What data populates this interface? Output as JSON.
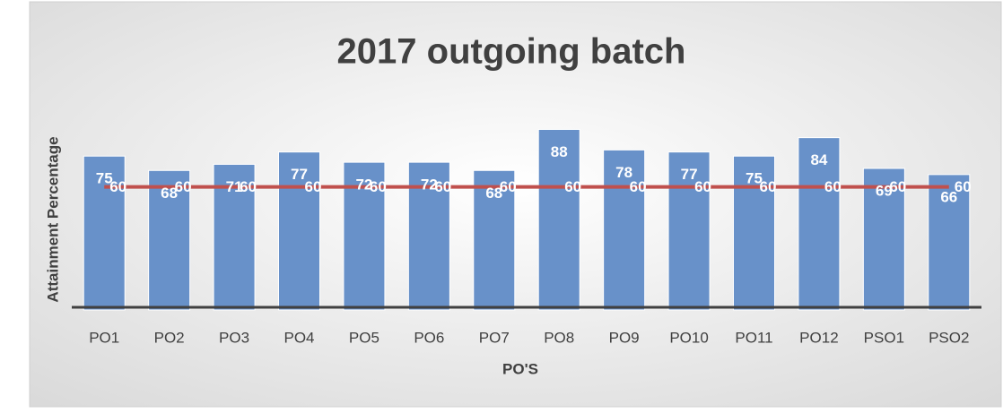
{
  "chart_data": {
    "type": "bar_line",
    "title": "2017 outgoing batch",
    "x_label": "PO'S",
    "y_label": "Attainment  Percentage",
    "categories": [
      "PO1",
      "PO2",
      "PO3",
      "PO4",
      "PO5",
      "PO6",
      "PO7",
      "PO8",
      "PO9",
      "PO10",
      "PO11",
      "PO12",
      "PSO1",
      "PSO2"
    ],
    "series": [
      {
        "type": "bar",
        "color": "#6891c9",
        "values": [
          75,
          68,
          71,
          77,
          72,
          72,
          68,
          88,
          78,
          77,
          75,
          84,
          69,
          66
        ]
      },
      {
        "type": "line",
        "color": "#c0504d",
        "values": [
          60,
          60,
          60,
          60,
          60,
          60,
          60,
          60,
          60,
          60,
          60,
          60,
          60,
          60
        ]
      }
    ],
    "ylim": [
      0,
      100
    ],
    "grid": false
  }
}
